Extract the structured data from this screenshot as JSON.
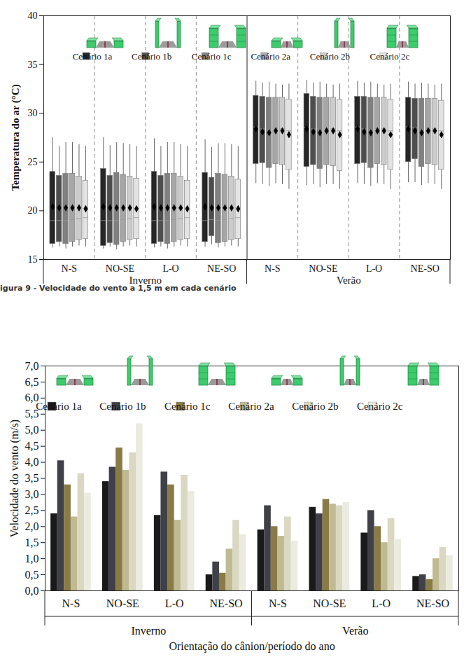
{
  "chart_data": [
    {
      "type": "box",
      "y_label": "Temperatura do ar (°C)",
      "categories": [
        "N-S",
        "NO-SE",
        "L-O",
        "NE-SO",
        "N-S",
        "NO-SE",
        "L-O",
        "NE-SO"
      ],
      "periods": [
        "Inverno",
        "Inverno",
        "Inverno",
        "Inverno",
        "Verão",
        "Verão",
        "Verão",
        "Verão"
      ],
      "ylim": [
        15,
        40
      ],
      "yticks": [
        15,
        20,
        25,
        30,
        35,
        40
      ],
      "legend": "top",
      "series": [
        {
          "name": "Cenário 1a",
          "color": "#262626",
          "whisker_low": [
            16.2,
            16.1,
            16.2,
            16.3,
            22.8,
            22.6,
            22.8,
            22.9
          ],
          "q1": [
            16.6,
            16.4,
            16.6,
            16.8,
            24.8,
            24.5,
            24.8,
            25.0
          ],
          "median": [
            19.0,
            19.0,
            19.0,
            19.0,
            28.6,
            28.5,
            28.6,
            28.6
          ],
          "q3": [
            24.0,
            24.3,
            24.0,
            23.9,
            31.8,
            32.0,
            31.7,
            31.6
          ],
          "whisker_high": [
            27.5,
            27.5,
            27.4,
            27.3,
            33.3,
            33.4,
            33.3,
            33.2
          ],
          "mean": [
            20.4,
            20.4,
            20.4,
            20.4,
            28.4,
            28.4,
            28.4,
            28.4
          ]
        },
        {
          "name": "Cenário 1b",
          "color": "#4d4d4d",
          "whisker_low": [
            16.3,
            16.3,
            16.3,
            16.5,
            22.7,
            22.7,
            22.7,
            22.9
          ],
          "q1": [
            16.8,
            16.7,
            16.8,
            17.4,
            24.9,
            24.7,
            24.9,
            25.3
          ],
          "median": [
            19.0,
            19.0,
            19.0,
            19.1,
            28.4,
            28.4,
            28.4,
            28.5
          ],
          "q3": [
            23.6,
            23.6,
            23.6,
            23.4,
            31.7,
            31.7,
            31.7,
            31.5
          ],
          "whisker_high": [
            26.6,
            26.7,
            26.6,
            26.5,
            33.1,
            33.1,
            33.1,
            33.0
          ],
          "mean": [
            20.3,
            20.3,
            20.3,
            20.3,
            28.1,
            28.1,
            28.1,
            28.2
          ]
        },
        {
          "name": "Cenário 1c",
          "color": "#808080",
          "whisker_low": [
            16.1,
            16.0,
            16.1,
            16.2,
            22.5,
            22.4,
            22.5,
            22.6
          ],
          "q1": [
            16.6,
            16.5,
            16.6,
            16.7,
            24.4,
            24.3,
            24.4,
            24.5
          ],
          "median": [
            19.0,
            19.0,
            19.0,
            19.0,
            28.3,
            28.3,
            28.3,
            28.3
          ],
          "q3": [
            23.8,
            23.9,
            23.8,
            23.8,
            31.6,
            31.6,
            31.6,
            31.5
          ],
          "whisker_high": [
            27.0,
            27.0,
            27.0,
            26.9,
            33.2,
            33.2,
            33.2,
            33.1
          ],
          "mean": [
            20.3,
            20.3,
            20.3,
            20.3,
            28.0,
            28.0,
            28.0,
            28.0
          ]
        },
        {
          "name": "Cenário 2a",
          "color": "#a6a6a6",
          "whisker_low": [
            16.3,
            16.3,
            16.3,
            16.3,
            22.8,
            22.7,
            22.8,
            22.8
          ],
          "q1": [
            16.8,
            16.8,
            16.8,
            16.8,
            24.8,
            24.7,
            24.8,
            24.8
          ],
          "median": [
            19.1,
            19.1,
            19.1,
            19.1,
            28.5,
            28.5,
            28.5,
            28.5
          ],
          "q3": [
            23.8,
            23.7,
            23.8,
            23.7,
            31.6,
            31.6,
            31.6,
            31.5
          ],
          "whisker_high": [
            27.0,
            26.9,
            27.0,
            26.9,
            33.0,
            33.0,
            33.0,
            33.0
          ],
          "mean": [
            20.3,
            20.3,
            20.3,
            20.3,
            28.2,
            28.2,
            28.2,
            28.2
          ]
        },
        {
          "name": "Cenário 2b",
          "color": "#cccccc",
          "whisker_low": [
            16.4,
            16.4,
            16.4,
            16.4,
            22.7,
            22.7,
            22.7,
            22.7
          ],
          "q1": [
            17.0,
            17.0,
            17.0,
            17.0,
            24.7,
            24.6,
            24.7,
            24.7
          ],
          "median": [
            19.2,
            19.2,
            19.2,
            19.2,
            28.4,
            28.4,
            28.4,
            28.4
          ],
          "q3": [
            23.5,
            23.5,
            23.5,
            23.5,
            31.6,
            31.6,
            31.6,
            31.5
          ],
          "whisker_high": [
            26.8,
            26.8,
            26.8,
            26.8,
            32.9,
            32.9,
            32.9,
            32.9
          ],
          "mean": [
            20.3,
            20.3,
            20.3,
            20.3,
            28.2,
            28.2,
            28.2,
            28.2
          ]
        },
        {
          "name": "Cenário 2c",
          "color": "#e3e3e3",
          "whisker_low": [
            16.3,
            16.3,
            16.3,
            16.3,
            22.2,
            22.2,
            22.2,
            22.2
          ],
          "q1": [
            17.1,
            17.1,
            17.1,
            17.1,
            24.2,
            24.1,
            24.2,
            24.2
          ],
          "median": [
            19.3,
            19.3,
            19.3,
            19.3,
            28.2,
            28.2,
            28.2,
            28.2
          ],
          "q3": [
            23.1,
            23.3,
            23.1,
            23.2,
            31.4,
            31.4,
            31.4,
            31.3
          ],
          "whisker_high": [
            26.6,
            26.6,
            26.6,
            26.6,
            33.0,
            33.0,
            33.0,
            33.0
          ],
          "mean": [
            20.2,
            20.2,
            20.2,
            20.2,
            27.8,
            27.8,
            27.8,
            27.8
          ]
        }
      ]
    },
    {
      "type": "bar",
      "title": "igura 9 - Velocidade do vento a 1,5 m em cada cenário",
      "y_label": "Velocidade do vento (m/s)",
      "x_label": "Orientação do cânion/período do ano",
      "categories": [
        "N-S",
        "NO-SE",
        "L-O",
        "NE-SO",
        "N-S",
        "NO-SE",
        "L-O",
        "NE-SO"
      ],
      "periods": [
        "Inverno",
        "Inverno",
        "Inverno",
        "Inverno",
        "Verão",
        "Verão",
        "Verão",
        "Verão"
      ],
      "ylim": [
        0,
        7
      ],
      "yticks": [
        {
          "value": 0,
          "label": "0,0"
        },
        {
          "value": 0.5,
          "label": "0,5"
        },
        {
          "value": 1,
          "label": "1,0"
        },
        {
          "value": 1.5,
          "label": "1,5"
        },
        {
          "value": 2,
          "label": "2,0"
        },
        {
          "value": 2.5,
          "label": "2,5"
        },
        {
          "value": 3,
          "label": "3,0"
        },
        {
          "value": 3.5,
          "label": "3,5"
        },
        {
          "value": 4,
          "label": "4,0"
        },
        {
          "value": 4.5,
          "label": "4,5"
        },
        {
          "value": 5,
          "label": "5,0"
        },
        {
          "value": 5.5,
          "label": "5,5"
        },
        {
          "value": 6,
          "label": "6,0"
        },
        {
          "value": 6.5,
          "label": "6,5"
        },
        {
          "value": 7,
          "label": "7,0"
        }
      ],
      "legend": "top",
      "series": [
        {
          "name": "Cenário 1a",
          "color": "#1a1a1a",
          "values": [
            2.4,
            3.4,
            2.35,
            0.5,
            1.9,
            2.6,
            1.8,
            0.45
          ]
        },
        {
          "name": "Cenário 1b",
          "color": "#3f4048",
          "values": [
            4.05,
            3.85,
            3.7,
            0.9,
            2.65,
            2.4,
            2.5,
            0.5
          ]
        },
        {
          "name": "Cenário 1c",
          "color": "#8a7a45",
          "values": [
            3.3,
            4.45,
            3.3,
            0.55,
            2.0,
            2.85,
            2.0,
            0.35
          ]
        },
        {
          "name": "Cenário 2a",
          "color": "#c0ba92",
          "values": [
            2.3,
            3.75,
            2.2,
            1.3,
            1.7,
            2.7,
            1.5,
            1.0
          ]
        },
        {
          "name": "Cenário 2b",
          "color": "#dad8c2",
          "values": [
            3.65,
            4.3,
            3.6,
            2.2,
            2.3,
            2.65,
            2.25,
            1.35
          ]
        },
        {
          "name": "Cenário 2c",
          "color": "#ecebe0",
          "values": [
            3.05,
            5.2,
            3.1,
            1.75,
            1.55,
            2.75,
            1.6,
            1.1
          ]
        }
      ]
    }
  ]
}
